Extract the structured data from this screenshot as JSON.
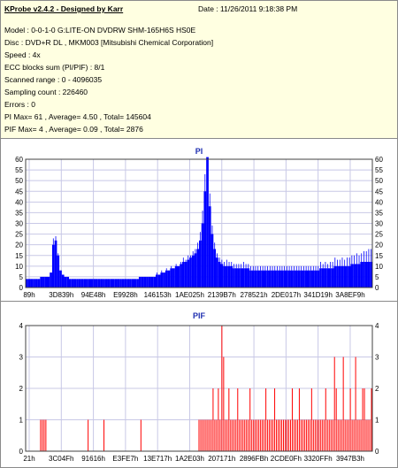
{
  "header": {
    "app_title": "KProbe v2.4.2 - Designed by Karr",
    "date": "Date : 11/26/2011 9:18:38 PM",
    "lines": [
      "Model : 0-0-1-0 G:LITE-ON DVDRW SHM-165H6S HS0E",
      "Disc : DVD+R DL , MKM003 [Mitsubishi Chemical Corporation]",
      "Speed : 4x",
      "ECC blocks sum (PI/PIF) : 8/1",
      "Scanned range : 0 - 4096035",
      "Sampling count : 226460",
      "Errors : 0",
      "PI Max= 61 , Average= 4.50 , Total= 145604",
      "PIF Max= 4 , Average= 0.09 , Total= 2876"
    ]
  },
  "colors": {
    "pi_series": "#0000ff",
    "pif_series": "#ff0000",
    "plot_bg": "#ffffff",
    "grid": "#c8c8e6",
    "info_bg": "#ffffe1"
  },
  "chart_data": [
    {
      "type": "bar",
      "title": "PI",
      "ylim": [
        0,
        60
      ],
      "yticks": [
        0,
        5,
        10,
        15,
        20,
        25,
        30,
        35,
        40,
        45,
        50,
        55,
        60
      ],
      "xtick_labels": [
        "89h",
        "3D839h",
        "94E48h",
        "E9928h",
        "146153h",
        "1AE025h",
        "2139B7h",
        "278521h",
        "2DE017h",
        "341D19h",
        "3A8EF9h"
      ],
      "grid": true,
      "max": 61,
      "average": 4.5,
      "series": [
        {
          "values": [
            4,
            4,
            4,
            4,
            4,
            4,
            5,
            5,
            5,
            5,
            7,
            20,
            22,
            15,
            8,
            6,
            5,
            5,
            4,
            4,
            4,
            4,
            4,
            4,
            4,
            4,
            4,
            4,
            4,
            4,
            4,
            4,
            4,
            4,
            4,
            4,
            4,
            4,
            4,
            4,
            4,
            4,
            4,
            4,
            4,
            4,
            4,
            5,
            5,
            5,
            5,
            5,
            5,
            5,
            6,
            6,
            7,
            7,
            8,
            8,
            9,
            9,
            10,
            10,
            11,
            12,
            12,
            13,
            14,
            15,
            16,
            18,
            22,
            30,
            45,
            61,
            38,
            25,
            18,
            14,
            12,
            11,
            10,
            10,
            10,
            10,
            9,
            9,
            9,
            9,
            9,
            9,
            9,
            8,
            8,
            8,
            8,
            8,
            8,
            8,
            8,
            8,
            8,
            8,
            8,
            8,
            8,
            8,
            8,
            8,
            8,
            8,
            8,
            8,
            8,
            8,
            8,
            8,
            8,
            8,
            8,
            8,
            9,
            9,
            9,
            9,
            9,
            9,
            10,
            10,
            10,
            10,
            10,
            10,
            10,
            11,
            11,
            11,
            11,
            12,
            12,
            12,
            12,
            12
          ],
          "peaks": [
            0,
            0,
            0,
            0,
            0,
            0,
            0,
            0,
            0,
            0,
            0,
            3,
            2,
            1,
            0,
            0,
            0,
            0,
            0,
            0,
            0,
            0,
            0,
            0,
            0,
            0,
            0,
            0,
            0,
            0,
            0,
            0,
            0,
            0,
            0,
            0,
            0,
            0,
            0,
            0,
            0,
            0,
            0,
            0,
            0,
            0,
            0,
            0,
            0,
            0,
            0,
            0,
            0,
            0,
            1,
            0,
            1,
            0,
            1,
            0,
            1,
            0,
            1,
            0,
            1,
            2,
            1,
            2,
            1,
            2,
            2,
            3,
            4,
            6,
            8,
            0,
            6,
            4,
            3,
            2,
            2,
            2,
            2,
            3,
            2,
            2,
            2,
            2,
            2,
            2,
            3,
            2,
            2,
            2,
            2,
            2,
            2,
            2,
            2,
            2,
            2,
            2,
            2,
            2,
            2,
            2,
            2,
            2,
            2,
            2,
            2,
            2,
            2,
            2,
            2,
            2,
            2,
            2,
            2,
            2,
            2,
            2,
            3,
            2,
            3,
            2,
            3,
            3,
            4,
            3,
            3,
            4,
            3,
            4,
            4,
            4,
            4,
            5,
            4,
            4,
            5,
            5,
            6,
            6
          ]
        }
      ]
    },
    {
      "type": "bar",
      "title": "PIF",
      "ylim": [
        0,
        4
      ],
      "yticks": [
        0,
        1,
        2,
        3,
        4
      ],
      "xtick_labels": [
        "21h",
        "3C04Fh",
        "91616h",
        "E3FE7h",
        "13E717h",
        "1A2E03h",
        "207171h",
        "2896FBh",
        "2CDE0Fh",
        "3320FFh",
        "3947B3h"
      ],
      "grid": true,
      "max": 4,
      "average": 0.09,
      "series": [
        {
          "values": [
            0,
            0,
            0,
            0,
            0,
            0,
            0,
            0,
            1,
            1,
            1,
            1,
            0,
            0,
            0,
            0,
            0,
            0,
            0,
            0,
            0,
            0,
            0,
            0,
            0,
            0,
            0,
            0,
            0,
            0,
            0,
            0,
            0,
            0,
            0,
            1,
            0,
            0,
            0,
            0,
            0,
            0,
            0,
            0,
            1,
            0,
            0,
            0,
            0,
            0,
            0,
            0,
            0,
            0,
            0,
            0,
            0,
            0,
            0,
            0,
            0,
            0,
            0,
            0,
            0,
            1,
            0,
            0,
            0,
            0,
            0,
            0,
            0,
            0,
            0,
            0,
            0,
            0,
            0,
            0,
            0,
            0,
            0,
            0,
            0,
            0,
            0,
            0,
            0,
            0,
            0,
            0,
            0,
            0,
            0,
            0,
            0,
            0,
            1,
            1,
            1,
            1,
            1,
            1,
            1,
            1,
            2,
            1,
            1,
            2,
            1,
            4,
            3,
            1,
            1,
            2,
            1,
            1,
            1,
            1,
            2,
            1,
            1,
            1,
            1,
            1,
            1,
            2,
            1,
            1,
            1,
            1,
            1,
            1,
            1,
            1,
            2,
            1,
            1,
            1,
            1,
            2,
            1,
            1,
            1,
            1,
            1,
            1,
            1,
            1,
            1,
            2,
            1,
            1,
            1,
            2,
            1,
            1,
            1,
            1,
            1,
            1,
            2,
            1,
            1,
            1,
            1,
            1,
            1,
            1,
            2,
            1,
            1,
            1,
            1,
            3,
            2,
            1,
            1,
            1,
            3,
            1,
            1,
            1,
            2,
            1,
            1,
            3,
            1,
            1,
            1,
            2,
            2,
            1,
            1,
            1,
            2
          ]
        }
      ]
    }
  ]
}
